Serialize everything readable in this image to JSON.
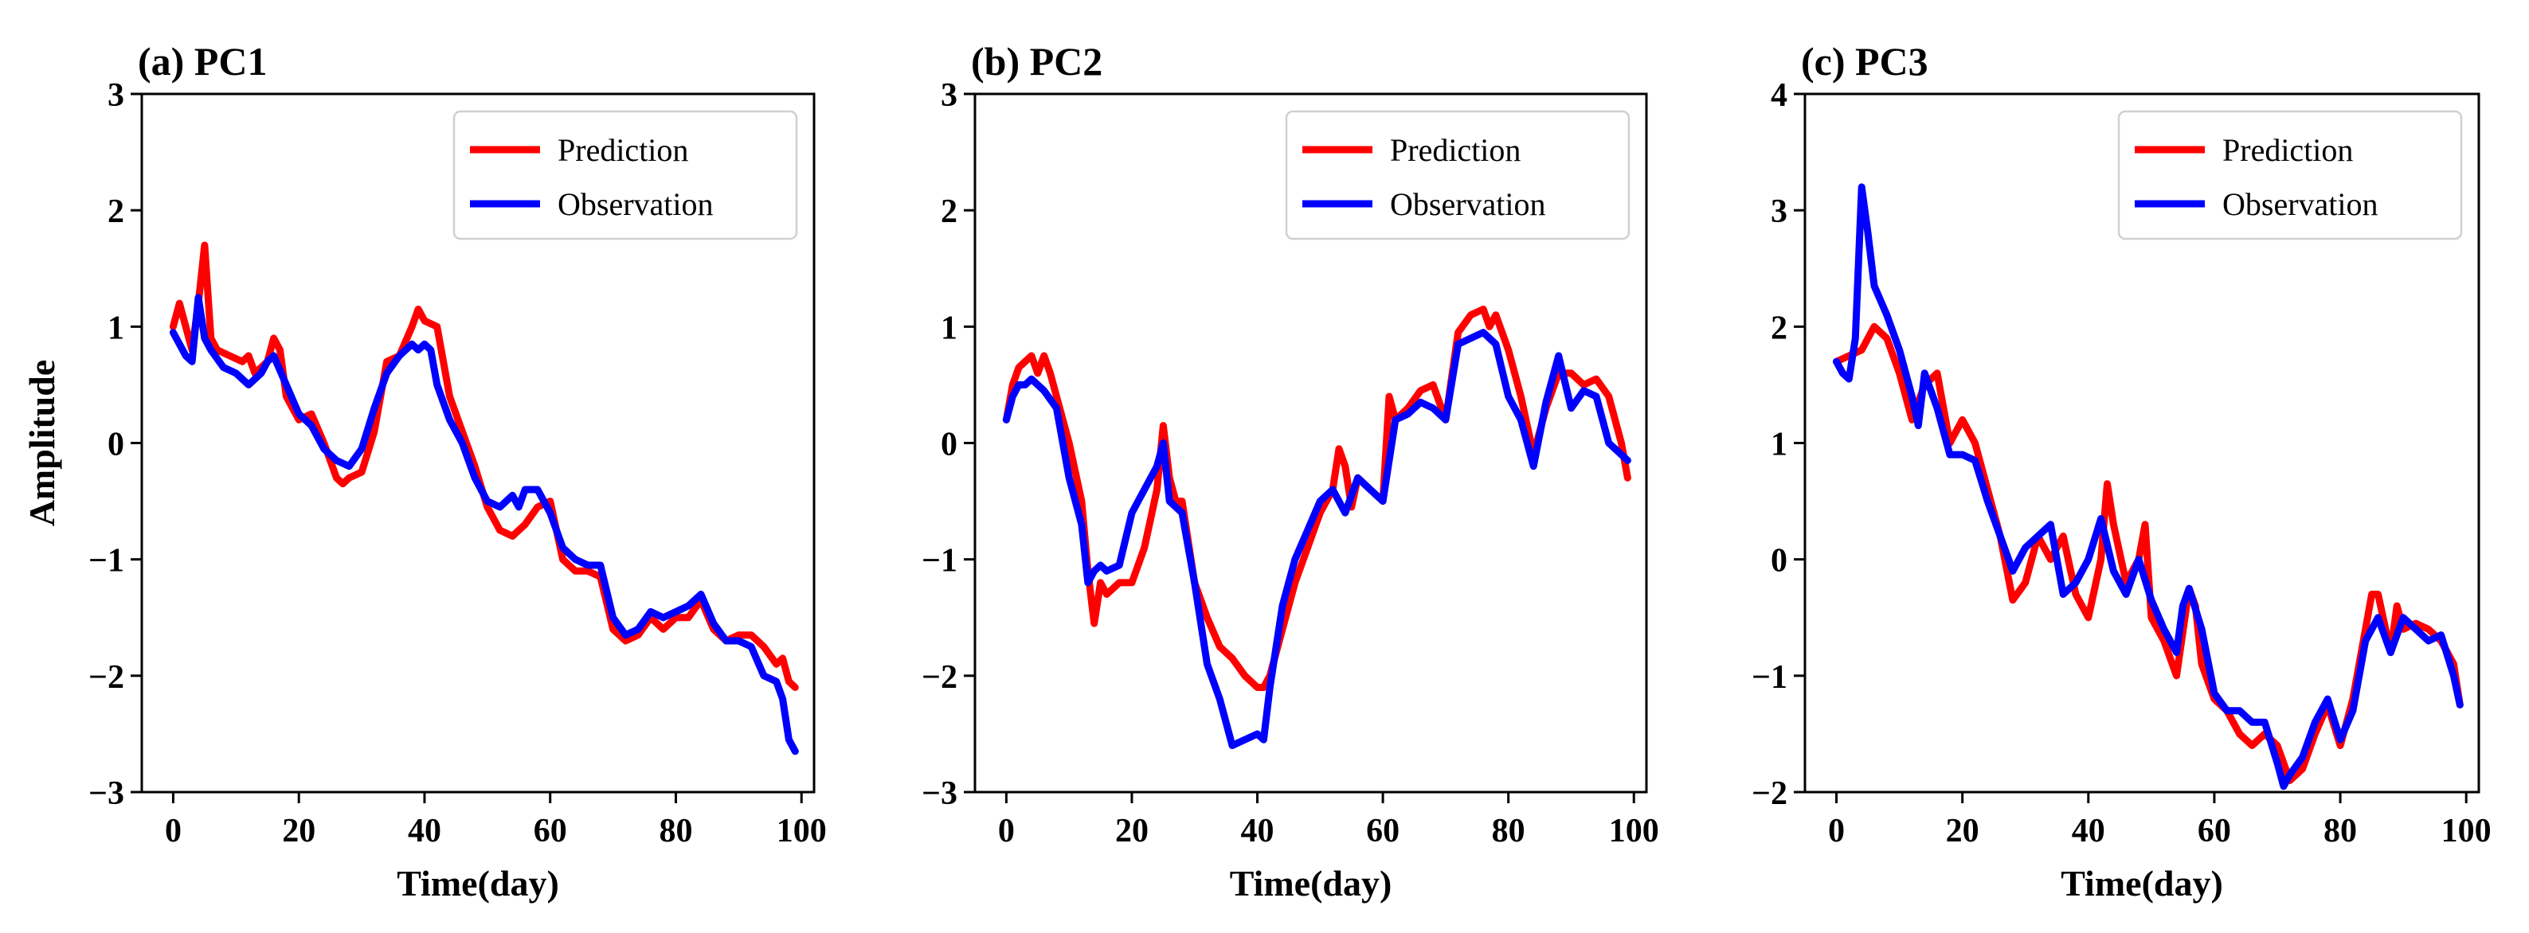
{
  "colors": {
    "prediction": "#ff0000",
    "observation": "#0000ff"
  },
  "chart_data": [
    {
      "type": "line",
      "title": "(a) PC1",
      "xlabel": "Time(day)",
      "ylabel": "Amplitude",
      "xlim": [
        -5,
        102
      ],
      "ylim": [
        -3,
        3
      ],
      "xticks": [
        0,
        20,
        40,
        60,
        80,
        100
      ],
      "yticks": [
        -3,
        -2,
        -1,
        0,
        1,
        2,
        3
      ],
      "legend": "upper-right",
      "series": [
        {
          "name": "Prediction",
          "color": "#ff0000",
          "x": [
            0,
            1,
            2,
            3,
            4,
            5,
            6,
            7,
            9,
            11,
            12,
            13,
            15,
            16,
            17,
            18,
            20,
            22,
            24,
            26,
            27,
            28,
            30,
            32,
            34,
            36,
            38,
            39,
            40,
            42,
            44,
            46,
            48,
            50,
            52,
            54,
            56,
            58,
            60,
            62,
            64,
            66,
            68,
            70,
            72,
            74,
            76,
            78,
            80,
            82,
            84,
            86,
            88,
            90,
            92,
            94,
            96,
            97,
            98,
            99
          ],
          "y": [
            1.0,
            1.2,
            1.0,
            0.8,
            1.2,
            1.7,
            0.9,
            0.8,
            0.75,
            0.7,
            0.75,
            0.6,
            0.7,
            0.9,
            0.8,
            0.4,
            0.2,
            0.25,
            0.0,
            -0.3,
            -0.35,
            -0.3,
            -0.25,
            0.1,
            0.7,
            0.75,
            1.0,
            1.15,
            1.05,
            1.0,
            0.4,
            0.1,
            -0.2,
            -0.55,
            -0.75,
            -0.8,
            -0.7,
            -0.55,
            -0.5,
            -1.0,
            -1.1,
            -1.1,
            -1.15,
            -1.6,
            -1.7,
            -1.65,
            -1.5,
            -1.6,
            -1.5,
            -1.5,
            -1.35,
            -1.6,
            -1.7,
            -1.65,
            -1.65,
            -1.75,
            -1.9,
            -1.85,
            -2.05,
            -2.1
          ]
        },
        {
          "name": "Observation",
          "color": "#0000ff",
          "x": [
            0,
            1,
            2,
            3,
            4,
            5,
            6,
            8,
            10,
            12,
            14,
            15,
            16,
            18,
            20,
            22,
            24,
            26,
            28,
            30,
            32,
            34,
            36,
            38,
            39,
            40,
            41,
            42,
            44,
            46,
            48,
            50,
            52,
            54,
            55,
            56,
            58,
            60,
            62,
            64,
            66,
            68,
            70,
            72,
            74,
            76,
            78,
            80,
            82,
            84,
            86,
            88,
            90,
            92,
            94,
            96,
            97,
            98,
            99
          ],
          "y": [
            0.95,
            0.85,
            0.75,
            0.7,
            1.25,
            0.9,
            0.8,
            0.65,
            0.6,
            0.5,
            0.6,
            0.7,
            0.75,
            0.5,
            0.25,
            0.15,
            -0.05,
            -0.15,
            -0.2,
            -0.05,
            0.3,
            0.6,
            0.75,
            0.85,
            0.8,
            0.85,
            0.8,
            0.5,
            0.2,
            0.0,
            -0.3,
            -0.5,
            -0.55,
            -0.45,
            -0.55,
            -0.4,
            -0.4,
            -0.6,
            -0.9,
            -1.0,
            -1.05,
            -1.05,
            -1.5,
            -1.65,
            -1.6,
            -1.45,
            -1.5,
            -1.45,
            -1.4,
            -1.3,
            -1.55,
            -1.7,
            -1.7,
            -1.75,
            -2.0,
            -2.05,
            -2.2,
            -2.55,
            -2.65
          ]
        }
      ]
    },
    {
      "type": "line",
      "title": "(b) PC2",
      "xlabel": "Time(day)",
      "ylabel": "",
      "xlim": [
        -5,
        102
      ],
      "ylim": [
        -3,
        3
      ],
      "xticks": [
        0,
        20,
        40,
        60,
        80,
        100
      ],
      "yticks": [
        -3,
        -2,
        -1,
        0,
        1,
        2,
        3
      ],
      "legend": "upper-right",
      "series": [
        {
          "name": "Prediction",
          "color": "#ff0000",
          "x": [
            0,
            1,
            2,
            3,
            4,
            5,
            6,
            7,
            8,
            10,
            12,
            13,
            14,
            15,
            16,
            18,
            20,
            22,
            24,
            25,
            26,
            27,
            28,
            30,
            32,
            34,
            36,
            38,
            40,
            41,
            42,
            44,
            46,
            48,
            50,
            52,
            53,
            54,
            55,
            56,
            58,
            60,
            61,
            62,
            64,
            66,
            68,
            70,
            72,
            74,
            76,
            77,
            78,
            80,
            82,
            84,
            86,
            88,
            90,
            92,
            94,
            96,
            98,
            99
          ],
          "y": [
            0.2,
            0.5,
            0.65,
            0.7,
            0.75,
            0.6,
            0.75,
            0.6,
            0.4,
            0.0,
            -0.5,
            -1.1,
            -1.55,
            -1.2,
            -1.3,
            -1.2,
            -1.2,
            -0.9,
            -0.4,
            0.15,
            -0.3,
            -0.5,
            -0.5,
            -1.2,
            -1.5,
            -1.75,
            -1.85,
            -2.0,
            -2.1,
            -2.1,
            -2.0,
            -1.6,
            -1.2,
            -0.9,
            -0.6,
            -0.4,
            -0.05,
            -0.2,
            -0.55,
            -0.3,
            -0.4,
            -0.5,
            0.4,
            0.2,
            0.3,
            0.45,
            0.5,
            0.2,
            0.95,
            1.1,
            1.15,
            1.0,
            1.1,
            0.8,
            0.4,
            -0.1,
            0.3,
            0.6,
            0.6,
            0.5,
            0.55,
            0.4,
            0.0,
            -0.3
          ]
        },
        {
          "name": "Observation",
          "color": "#0000ff",
          "x": [
            0,
            1,
            2,
            3,
            4,
            5,
            6,
            8,
            10,
            12,
            13,
            14,
            15,
            16,
            18,
            20,
            22,
            24,
            25,
            26,
            28,
            30,
            32,
            34,
            36,
            38,
            40,
            41,
            42,
            44,
            46,
            48,
            50,
            52,
            54,
            56,
            58,
            60,
            62,
            64,
            66,
            68,
            70,
            72,
            74,
            76,
            78,
            80,
            82,
            84,
            86,
            88,
            90,
            92,
            94,
            96,
            98,
            99
          ],
          "y": [
            0.2,
            0.4,
            0.5,
            0.5,
            0.55,
            0.5,
            0.45,
            0.3,
            -0.3,
            -0.7,
            -1.2,
            -1.1,
            -1.05,
            -1.1,
            -1.05,
            -0.6,
            -0.4,
            -0.2,
            0.0,
            -0.5,
            -0.6,
            -1.2,
            -1.9,
            -2.2,
            -2.6,
            -2.55,
            -2.5,
            -2.55,
            -2.1,
            -1.4,
            -1.0,
            -0.75,
            -0.5,
            -0.4,
            -0.6,
            -0.3,
            -0.4,
            -0.5,
            0.2,
            0.25,
            0.35,
            0.3,
            0.2,
            0.85,
            0.9,
            0.95,
            0.85,
            0.4,
            0.2,
            -0.2,
            0.35,
            0.75,
            0.3,
            0.45,
            0.4,
            0.0,
            -0.1,
            -0.15
          ]
        }
      ]
    },
    {
      "type": "line",
      "title": "(c) PC3",
      "xlabel": "Time(day)",
      "ylabel": "",
      "xlim": [
        -5,
        102
      ],
      "ylim": [
        -2,
        4
      ],
      "xticks": [
        0,
        20,
        40,
        60,
        80,
        100
      ],
      "yticks": [
        -2,
        -1,
        0,
        1,
        2,
        3,
        4
      ],
      "legend": "upper-right",
      "series": [
        {
          "name": "Prediction",
          "color": "#ff0000",
          "x": [
            0,
            2,
            4,
            6,
            8,
            10,
            12,
            14,
            16,
            18,
            20,
            22,
            24,
            26,
            28,
            30,
            32,
            34,
            36,
            38,
            40,
            42,
            43,
            44,
            46,
            48,
            49,
            50,
            52,
            54,
            56,
            57,
            58,
            60,
            62,
            64,
            66,
            68,
            70,
            72,
            74,
            76,
            78,
            80,
            82,
            84,
            85,
            86,
            88,
            89,
            90,
            92,
            94,
            96,
            98,
            99
          ],
          "y": [
            1.7,
            1.75,
            1.8,
            2.0,
            1.9,
            1.6,
            1.2,
            1.5,
            1.6,
            1.0,
            1.2,
            1.0,
            0.6,
            0.2,
            -0.35,
            -0.2,
            0.2,
            0.0,
            0.2,
            -0.3,
            -0.5,
            0.0,
            0.65,
            0.3,
            -0.2,
            0.0,
            0.3,
            -0.5,
            -0.7,
            -1.0,
            -0.25,
            -0.4,
            -0.9,
            -1.2,
            -1.3,
            -1.5,
            -1.6,
            -1.5,
            -1.6,
            -1.9,
            -1.8,
            -1.5,
            -1.25,
            -1.6,
            -1.2,
            -0.6,
            -0.3,
            -0.3,
            -0.8,
            -0.4,
            -0.6,
            -0.55,
            -0.6,
            -0.7,
            -0.9,
            -1.25
          ]
        },
        {
          "name": "Observation",
          "color": "#0000ff",
          "x": [
            0,
            1,
            2,
            3,
            4,
            5,
            6,
            8,
            10,
            12,
            13,
            14,
            16,
            18,
            20,
            22,
            24,
            26,
            28,
            30,
            32,
            34,
            36,
            38,
            40,
            42,
            44,
            46,
            48,
            50,
            52,
            54,
            55,
            56,
            58,
            60,
            62,
            64,
            66,
            68,
            70,
            71,
            72,
            74,
            76,
            78,
            80,
            82,
            84,
            86,
            88,
            90,
            92,
            94,
            96,
            98,
            99
          ],
          "y": [
            1.7,
            1.6,
            1.55,
            1.9,
            3.2,
            2.8,
            2.35,
            2.1,
            1.8,
            1.4,
            1.15,
            1.6,
            1.3,
            0.9,
            0.9,
            0.85,
            0.5,
            0.2,
            -0.1,
            0.1,
            0.2,
            0.3,
            -0.3,
            -0.2,
            0.0,
            0.35,
            -0.1,
            -0.3,
            0.0,
            -0.35,
            -0.6,
            -0.8,
            -0.4,
            -0.25,
            -0.6,
            -1.15,
            -1.3,
            -1.3,
            -1.4,
            -1.4,
            -1.75,
            -1.95,
            -1.85,
            -1.7,
            -1.4,
            -1.2,
            -1.55,
            -1.3,
            -0.7,
            -0.5,
            -0.8,
            -0.5,
            -0.6,
            -0.7,
            -0.65,
            -1.0,
            -1.25
          ]
        }
      ]
    }
  ]
}
